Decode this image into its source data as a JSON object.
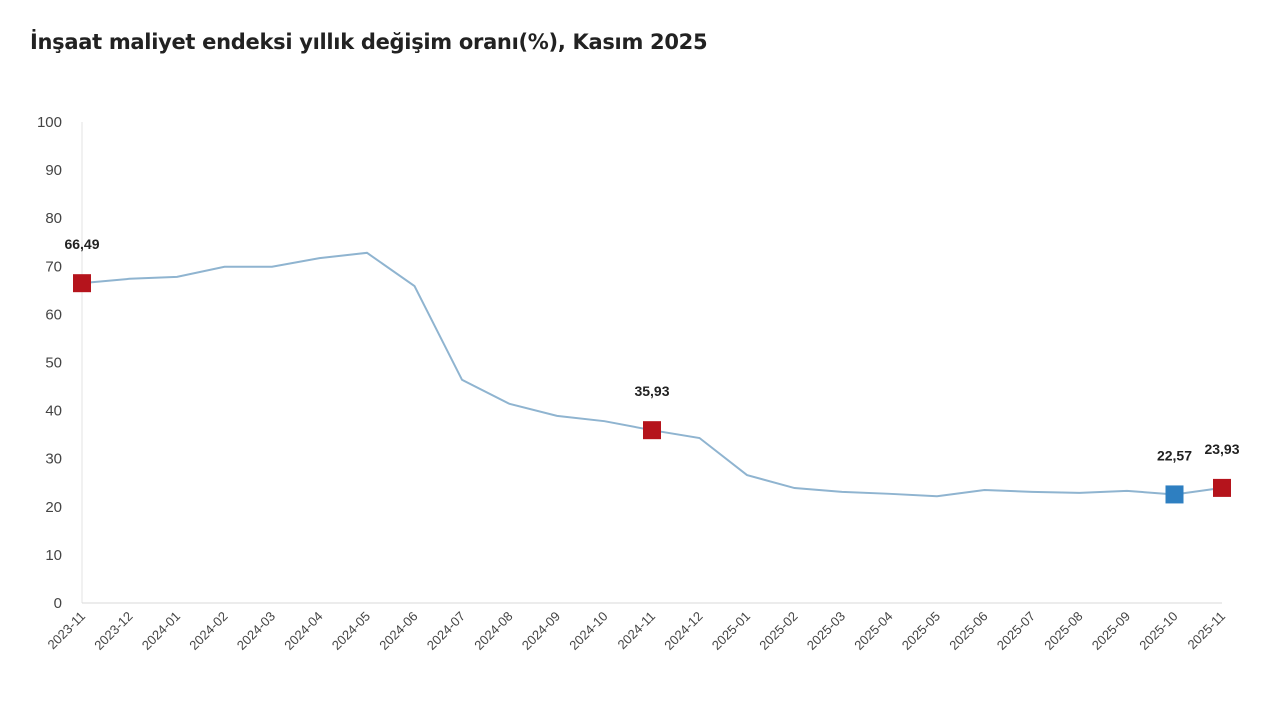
{
  "chart_data": {
    "type": "line",
    "title": "İnşaat maliyet endeksi yıllık değişim oranı(%), Kasım 2025",
    "xlabel": "",
    "ylabel": "",
    "ylim": [
      0,
      100
    ],
    "yticks": [
      0,
      10,
      20,
      30,
      40,
      50,
      60,
      70,
      80,
      90,
      100
    ],
    "grid": false,
    "line_color": "#8fb4d0",
    "categories": [
      "2023-11",
      "2023-12",
      "2024-01",
      "2024-02",
      "2024-03",
      "2024-04",
      "2024-05",
      "2024-06",
      "2024-07",
      "2024-08",
      "2024-09",
      "2024-10",
      "2024-11",
      "2024-12",
      "2025-01",
      "2025-02",
      "2025-03",
      "2025-04",
      "2025-05",
      "2025-06",
      "2025-07",
      "2025-08",
      "2025-09",
      "2025-10",
      "2025-11"
    ],
    "values": [
      66.49,
      67.4,
      67.8,
      69.9,
      69.9,
      71.7,
      72.8,
      65.9,
      46.4,
      41.4,
      38.9,
      37.8,
      35.93,
      34.3,
      26.6,
      23.9,
      23.1,
      22.7,
      22.2,
      23.5,
      23.1,
      22.9,
      23.3,
      22.57,
      23.93
    ],
    "highlights": [
      {
        "category": "2023-11",
        "label": "66,49",
        "color": "#b5141c"
      },
      {
        "category": "2024-11",
        "label": "35,93",
        "color": "#b5141c"
      },
      {
        "category": "2025-10",
        "label": "22,57",
        "color": "#2e7fc1"
      },
      {
        "category": "2025-11",
        "label": "23,93",
        "color": "#b5141c"
      }
    ]
  }
}
